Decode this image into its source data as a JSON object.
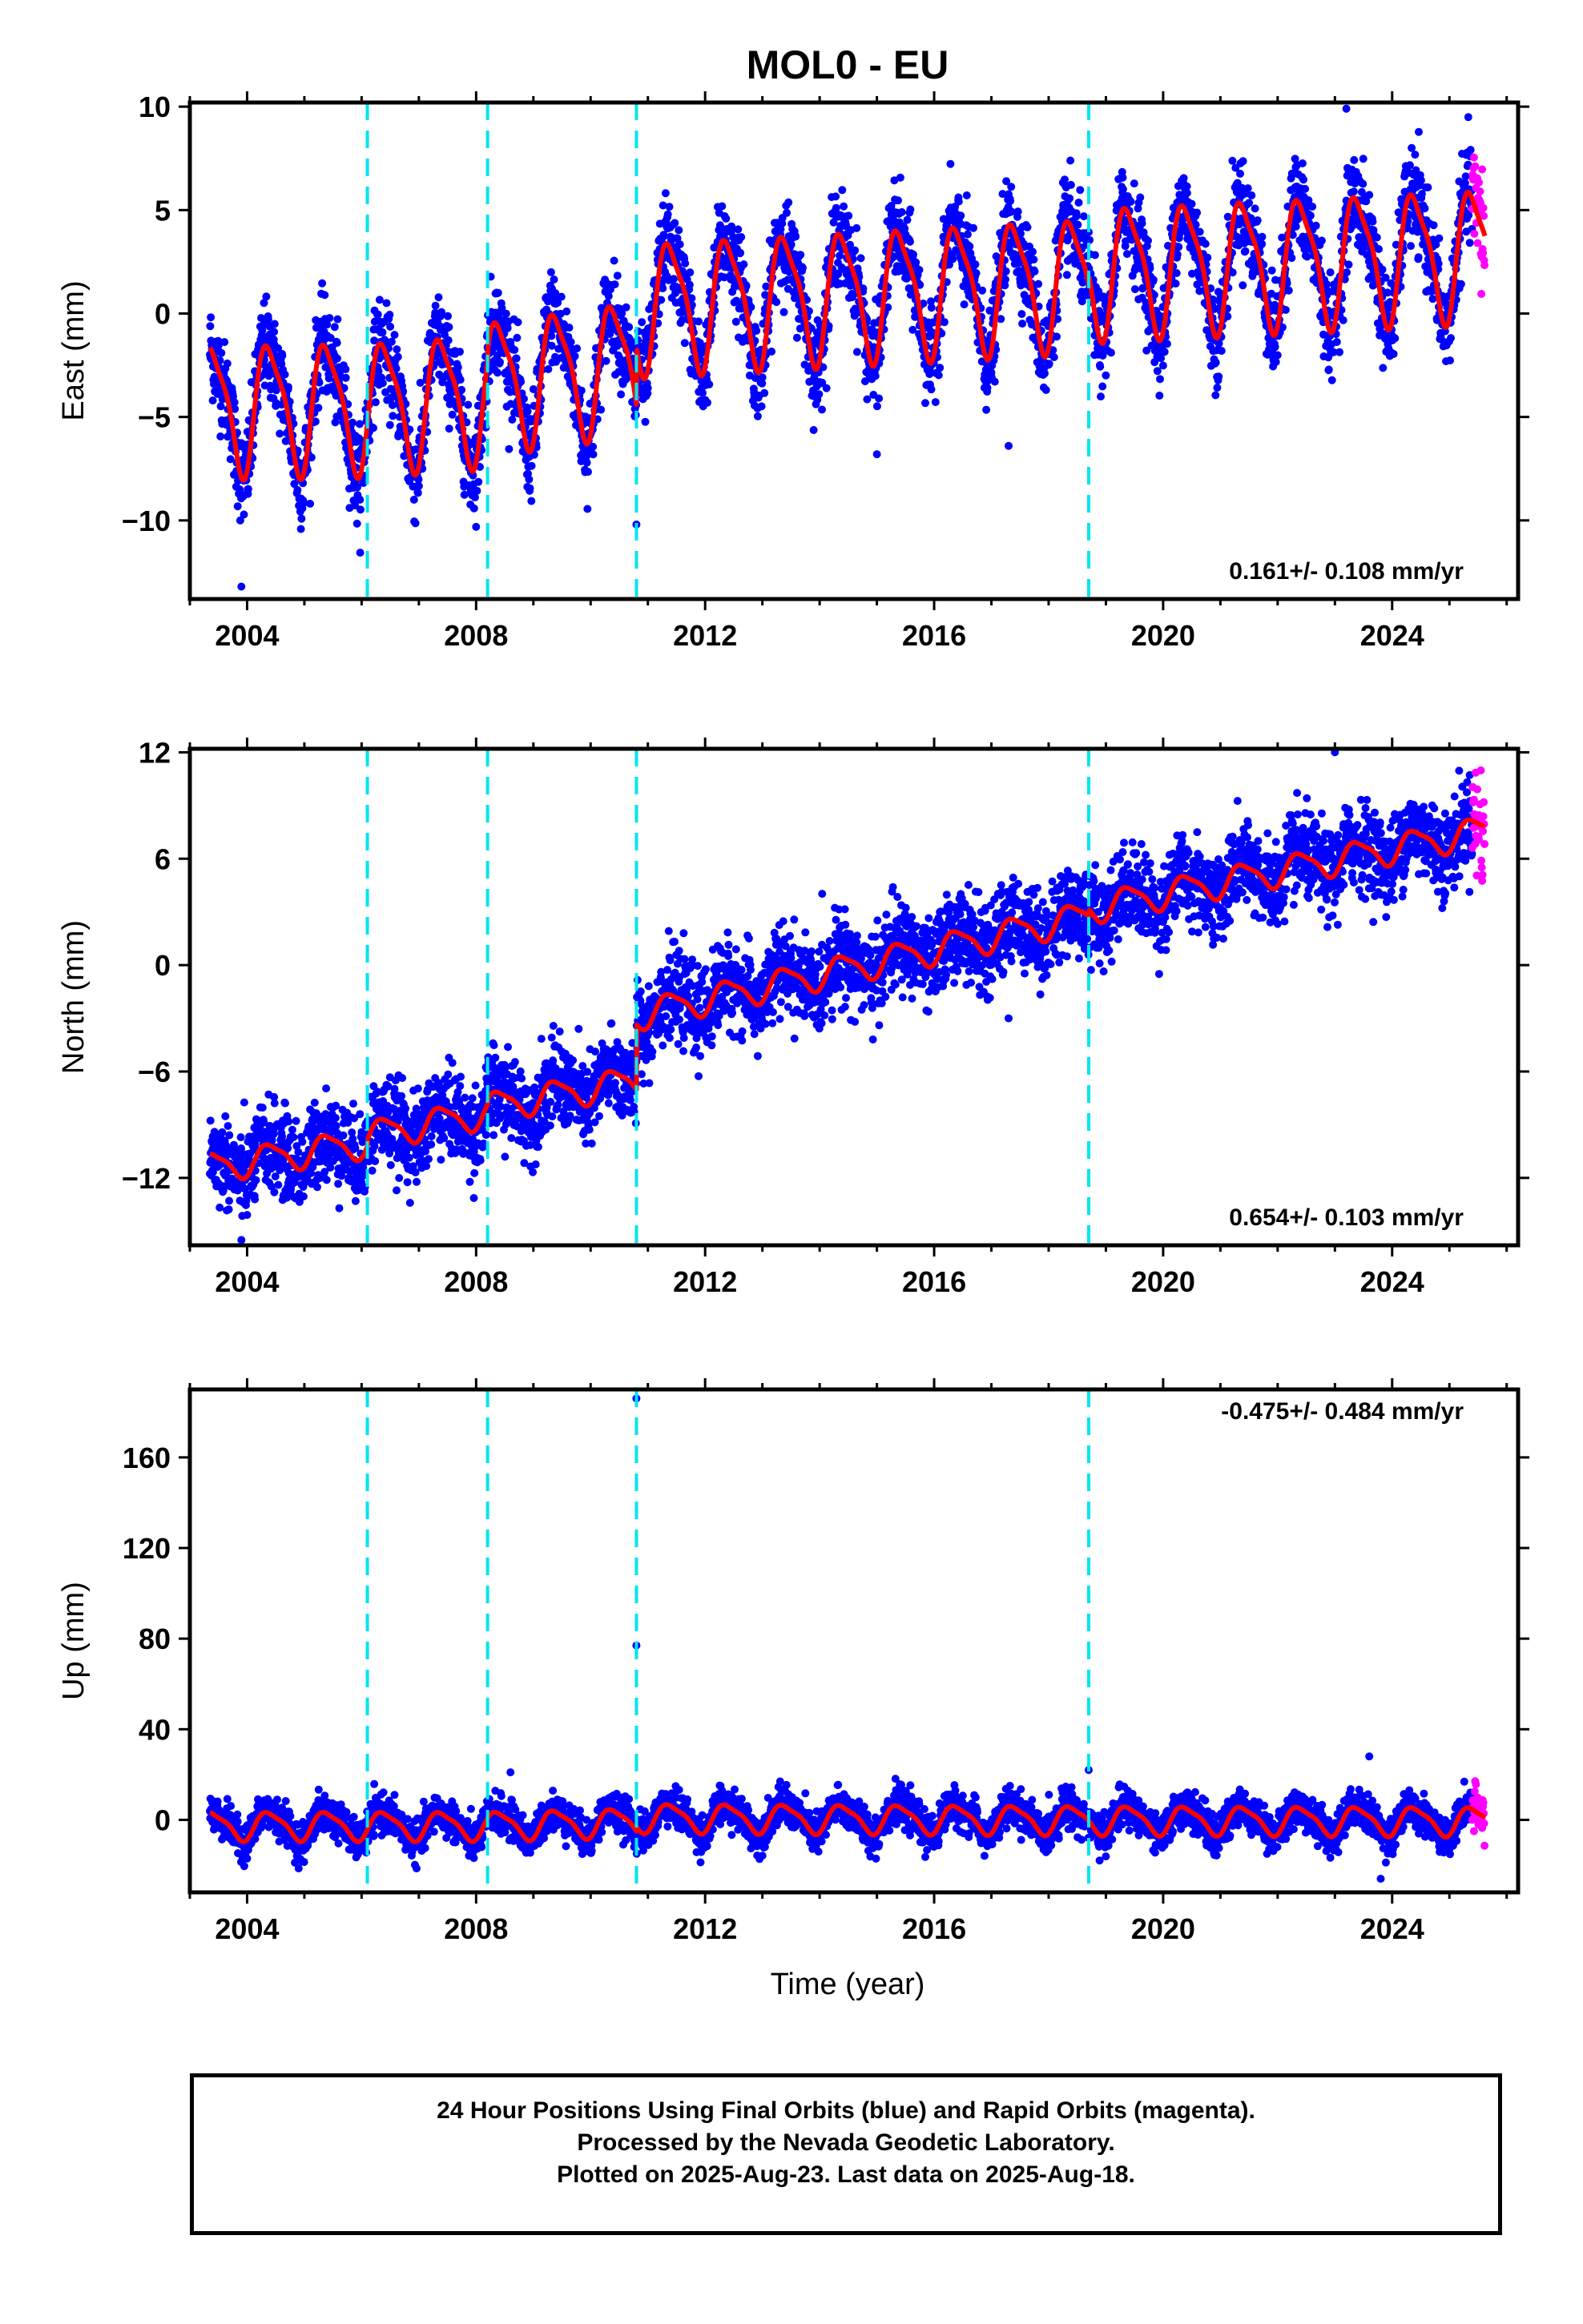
{
  "title": "MOL0 - EU",
  "xlabel": "Time (year)",
  "x_tick_labels": [
    "2004",
    "2008",
    "2012",
    "2016",
    "2020",
    "2024"
  ],
  "colors": {
    "final_orbits": "#0000ff",
    "rapid_orbits": "#ff00ff",
    "model_fit": "#ff0000",
    "offsets": "#00e5ee"
  },
  "footer": {
    "line1": "24 Hour Positions Using Final Orbits (blue) and Rapid Orbits (magenta).",
    "line2": "Processed by the Nevada Geodetic Laboratory.",
    "line3": "Plotted on 2025-Aug-23. Last data on 2025-Aug-18."
  },
  "chart_data": [
    {
      "type": "scatter",
      "component": "east",
      "ylabel": "East (mm)",
      "rate_label": "0.161+/- 0.108 mm/yr",
      "xlim": [
        2003.0,
        2026.2
      ],
      "ylim": [
        -13.8,
        10.2
      ],
      "yticks": [
        10,
        5,
        0,
        -5,
        -10
      ],
      "ytick_labels": [
        "10",
        "5",
        "0",
        "−5",
        "−10"
      ],
      "offset_lines_x": [
        2006.1,
        2008.2,
        2010.8,
        2018.7
      ],
      "data_start": 2003.35,
      "data_end": 2025.62,
      "rapid_start": 2025.4,
      "model_segments": [
        {
          "t0": 2003.35,
          "t1": 2006.1,
          "mean_start": -4.5,
          "mean_end": -4.4
        },
        {
          "t0": 2006.1,
          "t1": 2008.2,
          "mean_start": -4.4,
          "mean_end": -4.0
        },
        {
          "t0": 2008.2,
          "t1": 2010.8,
          "mean_start": -3.4,
          "mean_end": -2.4
        },
        {
          "t0": 2010.8,
          "t1": 2018.7,
          "mean_start": 0.4,
          "mean_end": 1.6
        },
        {
          "t0": 2018.7,
          "t1": 2025.62,
          "mean_start": 2.1,
          "mean_end": 3.0
        }
      ],
      "annual_amplitude": 3.0,
      "noise_sigma": 1.1,
      "outliers": [
        [
          2003.9,
          -13.2
        ],
        [
          2015.0,
          -6.8
        ],
        [
          2017.3,
          -6.4
        ],
        [
          2023.2,
          9.9
        ],
        [
          2010.8,
          -10.2
        ]
      ]
    },
    {
      "type": "scatter",
      "component": "north",
      "ylabel": "North (mm)",
      "rate_label": "0.654+/- 0.103 mm/yr",
      "xlim": [
        2003.0,
        2026.2
      ],
      "ylim": [
        -15.8,
        12.2
      ],
      "yticks": [
        12,
        6,
        0,
        -6,
        -12
      ],
      "ytick_labels": [
        "12",
        "6",
        "0",
        "−6",
        "−12"
      ],
      "offset_lines_x": [
        2006.1,
        2008.2,
        2010.8,
        2018.7
      ],
      "data_start": 2003.35,
      "data_end": 2025.62,
      "rapid_start": 2025.4,
      "model_segments": [
        {
          "t0": 2003.35,
          "t1": 2006.1,
          "mean_start": -11.4,
          "mean_end": -10.0
        },
        {
          "t0": 2006.1,
          "t1": 2008.2,
          "mean_start": -9.6,
          "mean_end": -8.3
        },
        {
          "t0": 2008.2,
          "t1": 2010.8,
          "mean_start": -8.0,
          "mean_end": -6.5
        },
        {
          "t0": 2010.8,
          "t1": 2018.7,
          "mean_start": -2.8,
          "mean_end": 2.8
        },
        {
          "t0": 2018.7,
          "t1": 2025.62,
          "mean_start": 3.2,
          "mean_end": 7.6
        }
      ],
      "annual_amplitude": 0.8,
      "noise_sigma": 1.2,
      "outliers": [
        [
          2023.0,
          12.0
        ],
        [
          2017.3,
          -3.0
        ],
        [
          2003.9,
          -15.5
        ]
      ]
    },
    {
      "type": "scatter",
      "component": "up",
      "ylabel": "Up (mm)",
      "rate_label": "-0.475+/- 0.484 mm/yr",
      "xlim": [
        2003.0,
        2026.2
      ],
      "ylim": [
        -32,
        190
      ],
      "yticks": [
        160,
        120,
        80,
        40,
        0
      ],
      "ytick_labels": [
        "160",
        "120",
        "80",
        "40",
        "0"
      ],
      "offset_lines_x": [
        2006.1,
        2008.2,
        2010.8,
        2018.7
      ],
      "data_start": 2003.35,
      "data_end": 2025.62,
      "rapid_start": 2025.4,
      "model_segments": [
        {
          "t0": 2003.35,
          "t1": 2006.1,
          "mean_start": -2.5,
          "mean_end": -2.5
        },
        {
          "t0": 2006.1,
          "t1": 2008.2,
          "mean_start": -2.5,
          "mean_end": -2.5
        },
        {
          "t0": 2008.2,
          "t1": 2010.8,
          "mean_start": -2.5,
          "mean_end": -1.0
        },
        {
          "t0": 2010.8,
          "t1": 2018.7,
          "mean_start": 1.0,
          "mean_end": 0.0
        },
        {
          "t0": 2018.7,
          "t1": 2025.62,
          "mean_start": 0.0,
          "mean_end": -0.5
        }
      ],
      "annual_amplitude": 6.0,
      "noise_sigma": 4.0,
      "outliers": [
        [
          2010.8,
          186.0
        ],
        [
          2010.8,
          77.0
        ],
        [
          2023.6,
          28.0
        ],
        [
          2008.6,
          21.0
        ],
        [
          2018.7,
          22.0
        ],
        [
          2023.8,
          -26.0
        ]
      ]
    }
  ]
}
